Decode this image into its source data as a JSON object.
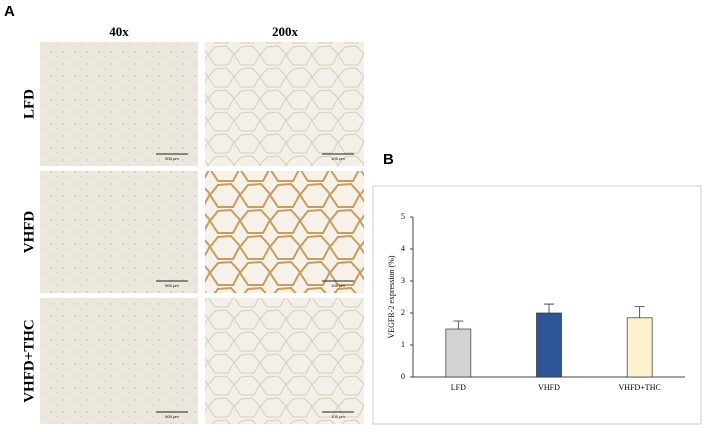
{
  "panel_a": {
    "label": "A",
    "columns": [
      "40x",
      "200x"
    ],
    "rows": [
      "LFD",
      "VHFD",
      "VHFD+THC"
    ],
    "scale_bars": [
      "500 μm",
      "100 μm"
    ]
  },
  "panel_b": {
    "label": "B"
  },
  "chart_data": {
    "type": "bar",
    "ylabel": "VEGFR-2 expression (%)",
    "categories": [
      "LFD",
      "VHFD",
      "VHFD+THC"
    ],
    "values": [
      1.5,
      2.0,
      1.85
    ],
    "errors": [
      0.25,
      0.28,
      0.35
    ],
    "colors": [
      "#d3d3d6",
      "#2e5597",
      "#fdf0cc"
    ],
    "ylim": [
      0,
      5
    ],
    "yticks": [
      0,
      1,
      2,
      3,
      4,
      5
    ],
    "grid": false
  }
}
